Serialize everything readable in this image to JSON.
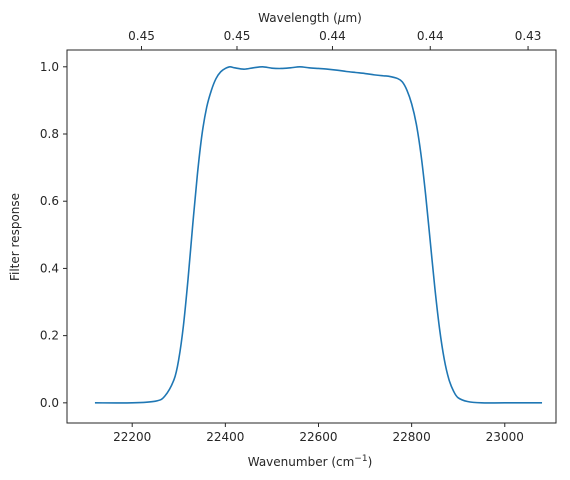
{
  "chart_data": {
    "type": "line",
    "title": "",
    "xlabel": "Wavenumber (cm",
    "xlabel_sup": "−1",
    "xlabel_end": ")",
    "ylabel": "Filter response",
    "top_xlabel": "Wavelength (",
    "top_xlabel_mu": "μ",
    "top_xlabel_end": "m)",
    "xlim": [
      22060,
      23110
    ],
    "ylim": [
      -0.06,
      1.05
    ],
    "x_ticks": [
      22200,
      22400,
      22600,
      22800,
      23000
    ],
    "y_ticks": [
      0.0,
      0.2,
      0.4,
      0.6,
      0.8,
      1.0
    ],
    "y_tick_labels": [
      "0.0",
      "0.2",
      "0.4",
      "0.6",
      "0.8",
      "1.0"
    ],
    "top_ticks": [
      {
        "x": 22220,
        "label": "0.45"
      },
      {
        "x": 22425,
        "label": "0.45"
      },
      {
        "x": 22630,
        "label": "0.44"
      },
      {
        "x": 22840,
        "label": "0.44"
      },
      {
        "x": 23050,
        "label": "0.43"
      }
    ],
    "line_color": "#1f77b4",
    "series": [
      {
        "x": [
          22120,
          22200,
          22250,
          22270,
          22290,
          22300,
          22310,
          22320,
          22330,
          22340,
          22350,
          22360,
          22370,
          22380,
          22390,
          22400,
          22410,
          22420,
          22440,
          22460,
          22480,
          22500,
          22520,
          22540,
          22560,
          22580,
          22600,
          22620,
          22640,
          22660,
          22680,
          22700,
          22720,
          22740,
          22750,
          22770,
          22780,
          22790,
          22800,
          22810,
          22820,
          22830,
          22840,
          22850,
          22860,
          22870,
          22880,
          22890,
          22900,
          22920,
          22950,
          23000,
          23080
        ],
        "y": [
          0.0,
          0.0,
          0.005,
          0.02,
          0.07,
          0.13,
          0.23,
          0.37,
          0.53,
          0.68,
          0.8,
          0.88,
          0.93,
          0.965,
          0.985,
          0.995,
          1.0,
          0.997,
          0.993,
          0.997,
          1.0,
          0.996,
          0.995,
          0.997,
          1.0,
          0.997,
          0.995,
          0.993,
          0.99,
          0.986,
          0.983,
          0.98,
          0.976,
          0.973,
          0.972,
          0.965,
          0.955,
          0.93,
          0.89,
          0.83,
          0.74,
          0.62,
          0.48,
          0.34,
          0.22,
          0.13,
          0.07,
          0.035,
          0.015,
          0.004,
          0.0,
          0.0,
          0.0
        ]
      }
    ]
  }
}
